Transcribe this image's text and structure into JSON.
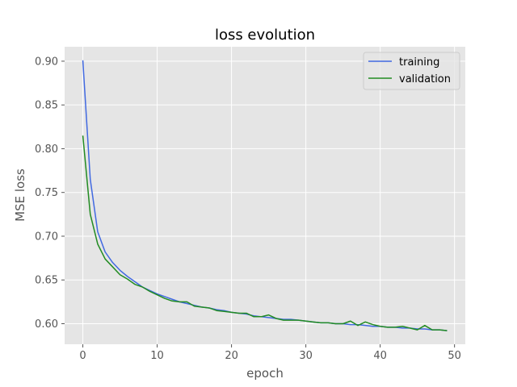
{
  "chart_data": {
    "type": "line",
    "title": "loss evolution",
    "xlabel": "epoch",
    "ylabel": "MSE loss",
    "xlim": [
      -2.45,
      51.45
    ],
    "ylim": [
      0.5765,
      0.9165
    ],
    "xticks": [
      0,
      10,
      20,
      30,
      40,
      50
    ],
    "yticks": [
      0.6,
      0.65,
      0.7,
      0.75,
      0.8,
      0.85,
      0.9
    ],
    "grid": true,
    "legend_position": "top-right",
    "x": [
      0,
      1,
      2,
      3,
      4,
      5,
      6,
      7,
      8,
      9,
      10,
      11,
      12,
      13,
      14,
      15,
      16,
      17,
      18,
      19,
      20,
      21,
      22,
      23,
      24,
      25,
      26,
      27,
      28,
      29,
      30,
      31,
      32,
      33,
      34,
      35,
      36,
      37,
      38,
      39,
      40,
      41,
      42,
      43,
      44,
      45,
      46,
      47,
      48,
      49
    ],
    "series": [
      {
        "name": "training",
        "color": "#4169e1",
        "values": [
          0.901,
          0.765,
          0.705,
          0.682,
          0.67,
          0.661,
          0.654,
          0.648,
          0.642,
          0.638,
          0.634,
          0.631,
          0.628,
          0.625,
          0.623,
          0.621,
          0.619,
          0.618,
          0.616,
          0.615,
          0.613,
          0.612,
          0.611,
          0.609,
          0.608,
          0.607,
          0.606,
          0.605,
          0.605,
          0.604,
          0.603,
          0.602,
          0.601,
          0.601,
          0.6,
          0.6,
          0.599,
          0.599,
          0.598,
          0.597,
          0.597,
          0.596,
          0.596,
          0.595,
          0.595,
          0.594,
          0.594,
          0.593,
          0.593,
          0.592
        ]
      },
      {
        "name": "validation",
        "color": "#228b22",
        "values": [
          0.815,
          0.725,
          0.691,
          0.674,
          0.665,
          0.656,
          0.651,
          0.645,
          0.642,
          0.637,
          0.633,
          0.629,
          0.626,
          0.625,
          0.625,
          0.62,
          0.619,
          0.618,
          0.615,
          0.614,
          0.613,
          0.612,
          0.612,
          0.608,
          0.608,
          0.61,
          0.606,
          0.604,
          0.604,
          0.604,
          0.603,
          0.602,
          0.601,
          0.601,
          0.6,
          0.6,
          0.603,
          0.598,
          0.602,
          0.599,
          0.597,
          0.596,
          0.596,
          0.597,
          0.595,
          0.593,
          0.598,
          0.593,
          0.593,
          0.592
        ]
      }
    ]
  }
}
